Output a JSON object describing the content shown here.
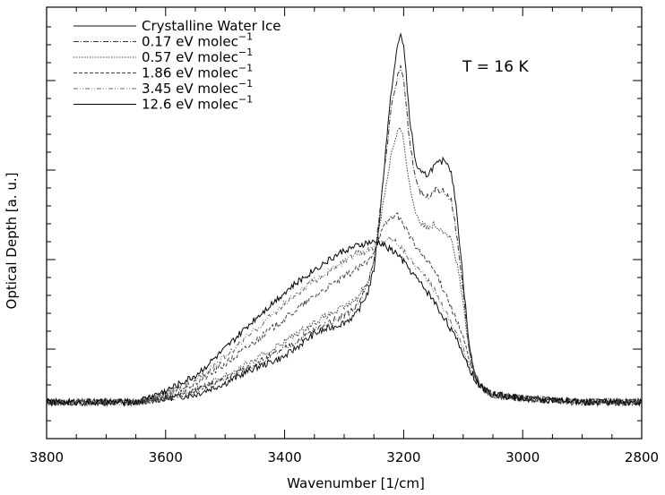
{
  "chart_data": {
    "type": "line",
    "xlabel": "Wavenumber [1/cm]",
    "ylabel": "Optical Depth [a. u.]",
    "annotation": "T = 16 K",
    "xlim": [
      3800,
      2800
    ],
    "x_reversed": true,
    "x_ticks": [
      3800,
      3600,
      3400,
      3200,
      3000,
      2800
    ],
    "y_ticks_labeled": false,
    "grid": false,
    "legend_position": "top-left",
    "series": [
      {
        "name": "Crystalline Water Ice",
        "line_style": "solid",
        "x": [
          3800,
          3650,
          3600,
          3550,
          3500,
          3450,
          3400,
          3350,
          3300,
          3280,
          3260,
          3250,
          3240,
          3230,
          3220,
          3210,
          3205,
          3200,
          3190,
          3180,
          3170,
          3160,
          3150,
          3140,
          3130,
          3120,
          3110,
          3100,
          3090,
          3080,
          3070,
          3060,
          3050,
          3000,
          2900,
          2800
        ],
        "y": [
          0.03,
          0.03,
          0.04,
          0.05,
          0.08,
          0.12,
          0.15,
          0.21,
          0.24,
          0.26,
          0.32,
          0.38,
          0.52,
          0.7,
          0.86,
          0.97,
          1.0,
          0.97,
          0.78,
          0.66,
          0.63,
          0.63,
          0.65,
          0.66,
          0.67,
          0.64,
          0.52,
          0.35,
          0.18,
          0.1,
          0.07,
          0.06,
          0.05,
          0.04,
          0.03,
          0.03
        ]
      },
      {
        "name": "0.17 eV molec^-1",
        "line_style": "dash-dot",
        "x": [
          3800,
          3650,
          3600,
          3550,
          3500,
          3450,
          3400,
          3350,
          3300,
          3280,
          3260,
          3250,
          3240,
          3230,
          3220,
          3210,
          3205,
          3200,
          3190,
          3180,
          3170,
          3160,
          3150,
          3140,
          3130,
          3120,
          3110,
          3100,
          3090,
          3080,
          3070,
          3060,
          3050,
          3000,
          2900,
          2800
        ],
        "y": [
          0.03,
          0.03,
          0.04,
          0.06,
          0.09,
          0.13,
          0.17,
          0.22,
          0.26,
          0.28,
          0.34,
          0.4,
          0.53,
          0.68,
          0.81,
          0.89,
          0.91,
          0.88,
          0.72,
          0.62,
          0.58,
          0.57,
          0.59,
          0.59,
          0.58,
          0.56,
          0.46,
          0.32,
          0.17,
          0.1,
          0.07,
          0.06,
          0.05,
          0.04,
          0.03,
          0.03
        ]
      },
      {
        "name": "0.57 eV molec^-1",
        "line_style": "dotted",
        "x": [
          3800,
          3650,
          3600,
          3550,
          3500,
          3450,
          3400,
          3350,
          3300,
          3280,
          3260,
          3250,
          3240,
          3230,
          3220,
          3210,
          3205,
          3200,
          3190,
          3180,
          3170,
          3160,
          3150,
          3140,
          3130,
          3120,
          3110,
          3100,
          3090,
          3080,
          3070,
          3060,
          3050,
          3000,
          2900,
          2800
        ],
        "y": [
          0.03,
          0.03,
          0.04,
          0.06,
          0.1,
          0.14,
          0.19,
          0.24,
          0.28,
          0.3,
          0.35,
          0.4,
          0.5,
          0.6,
          0.69,
          0.74,
          0.75,
          0.72,
          0.6,
          0.53,
          0.5,
          0.49,
          0.5,
          0.49,
          0.48,
          0.46,
          0.39,
          0.29,
          0.16,
          0.1,
          0.07,
          0.06,
          0.05,
          0.04,
          0.03,
          0.03
        ]
      },
      {
        "name": "1.86 eV molec^-1",
        "line_style": "dashed",
        "x": [
          3800,
          3650,
          3600,
          3550,
          3500,
          3450,
          3400,
          3350,
          3300,
          3280,
          3260,
          3250,
          3240,
          3230,
          3220,
          3210,
          3205,
          3200,
          3190,
          3180,
          3170,
          3160,
          3150,
          3140,
          3130,
          3120,
          3110,
          3100,
          3090,
          3080,
          3070,
          3060,
          3050,
          3000,
          2900,
          2800
        ],
        "y": [
          0.03,
          0.03,
          0.05,
          0.08,
          0.13,
          0.19,
          0.25,
          0.31,
          0.36,
          0.38,
          0.4,
          0.43,
          0.47,
          0.5,
          0.52,
          0.52,
          0.51,
          0.5,
          0.47,
          0.44,
          0.42,
          0.4,
          0.38,
          0.35,
          0.32,
          0.28,
          0.24,
          0.2,
          0.14,
          0.1,
          0.07,
          0.06,
          0.05,
          0.04,
          0.03,
          0.03
        ]
      },
      {
        "name": "3.45 eV molec^-1",
        "line_style": "dash-dot-dot",
        "x": [
          3800,
          3650,
          3600,
          3550,
          3500,
          3450,
          3400,
          3350,
          3300,
          3280,
          3260,
          3250,
          3240,
          3230,
          3220,
          3210,
          3205,
          3200,
          3190,
          3180,
          3170,
          3160,
          3150,
          3140,
          3130,
          3120,
          3110,
          3100,
          3090,
          3080,
          3070,
          3060,
          3050,
          3000,
          2900,
          2800
        ],
        "y": [
          0.03,
          0.03,
          0.05,
          0.09,
          0.15,
          0.22,
          0.29,
          0.35,
          0.4,
          0.42,
          0.43,
          0.44,
          0.45,
          0.46,
          0.46,
          0.45,
          0.44,
          0.43,
          0.41,
          0.39,
          0.37,
          0.35,
          0.33,
          0.3,
          0.27,
          0.24,
          0.21,
          0.17,
          0.13,
          0.1,
          0.07,
          0.06,
          0.05,
          0.04,
          0.03,
          0.03
        ]
      },
      {
        "name": "12.6 eV molec^-1",
        "line_style": "solid",
        "x": [
          3800,
          3650,
          3600,
          3550,
          3500,
          3450,
          3400,
          3350,
          3300,
          3280,
          3260,
          3250,
          3240,
          3230,
          3220,
          3210,
          3205,
          3200,
          3190,
          3180,
          3170,
          3160,
          3150,
          3140,
          3130,
          3120,
          3110,
          3100,
          3090,
          3080,
          3070,
          3060,
          3050,
          3000,
          2900,
          2800
        ],
        "y": [
          0.03,
          0.03,
          0.06,
          0.1,
          0.17,
          0.25,
          0.32,
          0.38,
          0.43,
          0.44,
          0.45,
          0.45,
          0.45,
          0.44,
          0.43,
          0.42,
          0.41,
          0.4,
          0.38,
          0.36,
          0.34,
          0.32,
          0.3,
          0.27,
          0.25,
          0.22,
          0.19,
          0.16,
          0.12,
          0.09,
          0.07,
          0.06,
          0.05,
          0.04,
          0.03,
          0.03
        ]
      }
    ]
  },
  "legend_labels": [
    {
      "base": "Crystalline Water Ice",
      "sup": ""
    },
    {
      "base": "0.17 eV molec",
      "sup": "−1"
    },
    {
      "base": "0.57 eV molec",
      "sup": "−1"
    },
    {
      "base": "1.86 eV molec",
      "sup": "−1"
    },
    {
      "base": "3.45 eV molec",
      "sup": "−1"
    },
    {
      "base": "12.6 eV molec",
      "sup": "−1"
    }
  ]
}
